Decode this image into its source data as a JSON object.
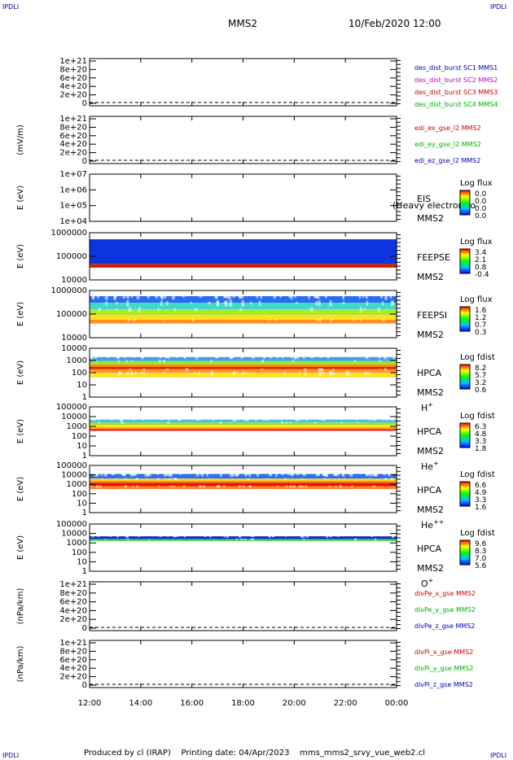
{
  "header": {
    "corner_label": "IPDLI",
    "mission": "MMS2",
    "date": "10/Feb/2020 12:00"
  },
  "footer": {
    "text": "Produced by cl (IRAP)    Printing date: 04/Apr/2023    mms_mms2_srvy_vue_web2.cl"
  },
  "chart_data": {
    "type": "heatmap",
    "x_ticks": [
      "12:00",
      "14:00",
      "16:00",
      "18:00",
      "20:00",
      "22:00",
      "00:00"
    ],
    "panels": [
      {
        "kind": "line",
        "ylabel": "",
        "y_ticks": [
          "1e+21",
          "8e+20",
          "6e+20",
          "4e+20",
          "2e+20",
          "0"
        ],
        "legend": [
          {
            "text": "des_dist_burst SC1 MMS1",
            "color": "#0000c0"
          },
          {
            "text": "des_dist_burst SC2 MMS2",
            "color": "#c000c0"
          },
          {
            "text": "des_dist_burst SC3 MMS3",
            "color": "#d00000"
          },
          {
            "text": "des_dist_burst SC4 MMS4",
            "color": "#00b000"
          }
        ]
      },
      {
        "kind": "line",
        "ylabel": "(mV/m)",
        "y_ticks": [
          "1e+21",
          "8e+20",
          "6e+20",
          "4e+20",
          "2e+20",
          "0"
        ],
        "legend": [
          {
            "text": "edi_ex_gse_l2 MMS2",
            "color": "#d00000"
          },
          {
            "text": "edi_ey_gse_l2 MMS2",
            "color": "#00b000"
          },
          {
            "text": "edi_ez_gse_l2 MMS2",
            "color": "#0000c0"
          }
        ]
      },
      {
        "kind": "spectro",
        "ylabel": "E (eV)",
        "y_ticks": [
          "1e+07",
          "1e+06",
          "1e+05",
          "1e+04"
        ],
        "instrument": "EIS",
        "overlay": "(Heavy electron to",
        "spacecraft": "MMS2",
        "species": "",
        "cbar_title": "Log flux",
        "cbar_ticks": [
          "0.0",
          "0.0",
          "0.0",
          "0.0"
        ],
        "bands": []
      },
      {
        "kind": "spectro",
        "ylabel": "E (eV)",
        "y_ticks": [
          "1000000",
          "100000",
          "10000"
        ],
        "instrument": "FEEPSE",
        "overlay": "",
        "spacecraft": "MMS2",
        "species": "",
        "cbar_title": "Log flux",
        "cbar_ticks": [
          "3.4",
          "2.1",
          "0.8",
          "-0.4"
        ],
        "bands": [
          {
            "from": 0.14,
            "to": 0.66,
            "color": "#0a35e0",
            "speckle": 0.0
          },
          {
            "from": 0.66,
            "to": 0.74,
            "color": "#c82000",
            "speckle": 0.0
          }
        ]
      },
      {
        "kind": "spectro",
        "ylabel": "E (eV)",
        "y_ticks": [
          "1000000",
          "100000",
          "10000"
        ],
        "instrument": "FEEPSI",
        "overlay": "",
        "spacecraft": "MMS2",
        "species": "",
        "cbar_title": "Log flux",
        "cbar_ticks": [
          "1.6",
          "1.2",
          "0.7",
          "0.3"
        ],
        "bands": [
          {
            "from": 0.12,
            "to": 0.26,
            "color": "#2a6cf0",
            "speckle": 0.45
          },
          {
            "from": 0.26,
            "to": 0.4,
            "color": "#40d8c8",
            "speckle": 0.2
          },
          {
            "from": 0.4,
            "to": 0.52,
            "color": "#a8e830",
            "speckle": 0.1
          },
          {
            "from": 0.52,
            "to": 0.62,
            "color": "#ffe020",
            "speckle": 0.0
          },
          {
            "from": 0.62,
            "to": 0.7,
            "color": "#ff9020",
            "speckle": 0.1
          }
        ]
      },
      {
        "kind": "spectro",
        "ylabel": "E (eV)",
        "y_ticks": [
          "10000",
          "1000",
          "100",
          "10",
          "1"
        ],
        "instrument": "HPCA",
        "overlay": "",
        "spacecraft": "MMS2",
        "species": "H+",
        "cbar_title": "Log fdist",
        "cbar_ticks": [
          "8.2",
          "5.7",
          "3.2",
          "0.6"
        ],
        "bands": [
          {
            "from": 0.18,
            "to": 0.26,
            "color": "#40a0f0",
            "speckle": 0.4
          },
          {
            "from": 0.26,
            "to": 0.33,
            "color": "#90e830",
            "speckle": 0.1
          },
          {
            "from": 0.33,
            "to": 0.38,
            "color": "#ff8c00",
            "speckle": 0.0
          },
          {
            "from": 0.38,
            "to": 0.43,
            "color": "#e02000",
            "speckle": 0.0
          },
          {
            "from": 0.43,
            "to": 0.5,
            "color": "#ff9a20",
            "speckle": 0.1
          },
          {
            "from": 0.5,
            "to": 0.6,
            "color": "#ffe030",
            "speckle": 0.3
          }
        ]
      },
      {
        "kind": "spectro",
        "ylabel": "E (eV)",
        "y_ticks": [
          "100000",
          "10000",
          "1000",
          "100",
          "10",
          "1"
        ],
        "instrument": "HPCA",
        "overlay": "",
        "spacecraft": "MMS2",
        "species": "He+",
        "cbar_title": "Log fdist",
        "cbar_ticks": [
          "6.3",
          "4.8",
          "3.3",
          "1.8"
        ],
        "bands": [
          {
            "from": 0.26,
            "to": 0.32,
            "color": "#40c0f0",
            "speckle": 0.4
          },
          {
            "from": 0.32,
            "to": 0.37,
            "color": "#98e030",
            "speckle": 0.1
          },
          {
            "from": 0.37,
            "to": 0.42,
            "color": "#ffe020",
            "speckle": 0.0
          },
          {
            "from": 0.42,
            "to": 0.46,
            "color": "#ff9020",
            "speckle": 0.0
          },
          {
            "from": 0.46,
            "to": 0.49,
            "color": "#d81000",
            "speckle": 0.0
          }
        ]
      },
      {
        "kind": "spectro",
        "ylabel": "E (eV)",
        "y_ticks": [
          "100000",
          "10000",
          "1000",
          "100",
          "10",
          "1"
        ],
        "instrument": "HPCA",
        "overlay": "",
        "spacecraft": "MMS2",
        "species": "He++",
        "cbar_title": "Log fdist",
        "cbar_ticks": [
          "6.6",
          "4.9",
          "3.3",
          "1.6"
        ],
        "bands": [
          {
            "from": 0.18,
            "to": 0.28,
            "color": "#2a70f0",
            "speckle": 0.8
          },
          {
            "from": 0.28,
            "to": 0.33,
            "color": "#ffd020",
            "speckle": 0.2
          },
          {
            "from": 0.33,
            "to": 0.37,
            "color": "#ff8020",
            "speckle": 0.0
          },
          {
            "from": 0.37,
            "to": 0.44,
            "color": "#e81800",
            "speckle": 0.0
          },
          {
            "from": 0.44,
            "to": 0.5,
            "color": "#ff8030",
            "speckle": 0.3
          }
        ]
      },
      {
        "kind": "spectro",
        "ylabel": "E (eV)",
        "y_ticks": [
          "100000",
          "10000",
          "1000",
          "100",
          "10",
          "1"
        ],
        "instrument": "HPCA",
        "overlay": "",
        "spacecraft": "MMS2",
        "species": "O+",
        "cbar_title": "Log fdist",
        "cbar_ticks": [
          "9.6",
          "8.3",
          "7.0",
          "5.6"
        ],
        "bands": [
          {
            "from": 0.26,
            "to": 0.32,
            "color": "#1030d0",
            "speckle": 0.3
          },
          {
            "from": 0.32,
            "to": 0.36,
            "color": "#40e040",
            "speckle": 0.1
          }
        ]
      },
      {
        "kind": "line",
        "ylabel": "(nPa/km)",
        "y_ticks": [
          "1e+21",
          "8e+20",
          "6e+20",
          "4e+20",
          "2e+20",
          "0"
        ],
        "legend": [
          {
            "text": "divPe_x_gse MMS2",
            "color": "#d00000"
          },
          {
            "text": "divPe_y_gse MMS2",
            "color": "#00b000"
          },
          {
            "text": "divPe_z_gse MMS2",
            "color": "#0000c0"
          }
        ]
      },
      {
        "kind": "line",
        "ylabel": "(nPa/km)",
        "y_ticks": [
          "1e+21",
          "8e+20",
          "6e+20",
          "4e+20",
          "2e+20",
          "0"
        ],
        "legend": [
          {
            "text": "divPi_x_gse MMS2",
            "color": "#d00000"
          },
          {
            "text": "divPi_y_gse MMS2",
            "color": "#00b000"
          },
          {
            "text": "divPi_z_gse MMS2",
            "color": "#0000c0"
          }
        ]
      }
    ]
  }
}
